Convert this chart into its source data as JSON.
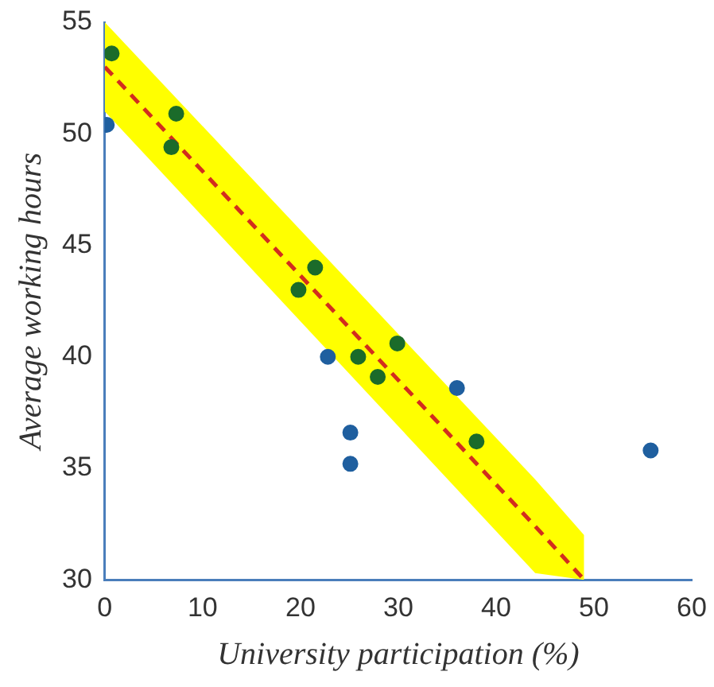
{
  "chart_data": {
    "type": "scatter",
    "xlabel": "University participation (%)",
    "ylabel": "Average working hours",
    "xlim": [
      0,
      60
    ],
    "xticks": [
      0,
      10,
      20,
      30,
      40,
      50,
      60
    ],
    "ylim": [
      30,
      55
    ],
    "yticks": [
      30,
      35,
      40,
      45,
      50,
      55
    ],
    "grid": false,
    "legend": false,
    "series": [
      {
        "marker": "circle",
        "x": [
          0.7,
          0.2,
          7.3,
          6.8,
          21.5,
          19.8,
          22.8,
          29.9,
          25.9,
          27.9,
          36,
          38,
          25.1,
          25.1,
          55.8
        ],
        "values": [
          53.6,
          50.4,
          50.9,
          49.4,
          44.0,
          43.0,
          40.0,
          40.6,
          40.0,
          39.1,
          38.6,
          36.2,
          36.6,
          35.2,
          35.8
        ],
        "colors": [
          "#1b6b2a",
          "#1f5f9f",
          "#1b6b2a",
          "#1b6b2a",
          "#1b6b2a",
          "#1b6b2a",
          "#1f5f9f",
          "#1b6b2a",
          "#1b6b2a",
          "#1b6b2a",
          "#1f5f9f",
          "#1b6b2a",
          "#1f5f9f",
          "#1f5f9f",
          "#1f5f9f"
        ]
      },
      {
        "type": "line",
        "x": [
          0,
          44,
          49
        ],
        "values": [
          53,
          32.4,
          30
        ],
        "lower": [
          51,
          30.3,
          30
        ],
        "upper": [
          55,
          34.5,
          32
        ],
        "color": "#d22d1e",
        "line_style": "dashed"
      }
    ]
  }
}
